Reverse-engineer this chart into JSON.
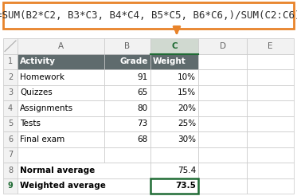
{
  "formula_text": "=SUM(B2*C2, B3*C3, B4*C4, B5*C5, B6*C6,)/SUM(C2:C6)",
  "formula_box_color": "#E8832A",
  "formula_bg_color": "#FFFFFF",
  "formula_text_color": "#2B2B2B",
  "col_headers": [
    "",
    "A",
    "B",
    "C",
    "D",
    "E"
  ],
  "col_header_bg": "#F2F2F2",
  "col_c_header_bg": "#D0D9D0",
  "col_c_header_text": "#1F6B34",
  "row_header_bg": "#F2F2F2",
  "header_row_bg": "#5F6B6D",
  "header_row_text": "#FFFFFF",
  "header_labels": [
    "Activity",
    "Grade",
    "Weight"
  ],
  "activities": [
    "Homework",
    "Quizzes",
    "Assignments",
    "Tests",
    "Final exam"
  ],
  "grades": [
    "91",
    "65",
    "80",
    "73",
    "68"
  ],
  "weights": [
    "10%",
    "15%",
    "20%",
    "25%",
    "30%"
  ],
  "normal_avg": "75.4",
  "weighted_avg": "73.5",
  "grid_color": "#C8C8C8",
  "row9_border_color": "#1F6B34",
  "activity_text_color": "#000000",
  "normal_text_color": "#000000",
  "arrow_color": "#E8832A",
  "figsize": [
    3.73,
    2.46
  ],
  "dpi": 100
}
